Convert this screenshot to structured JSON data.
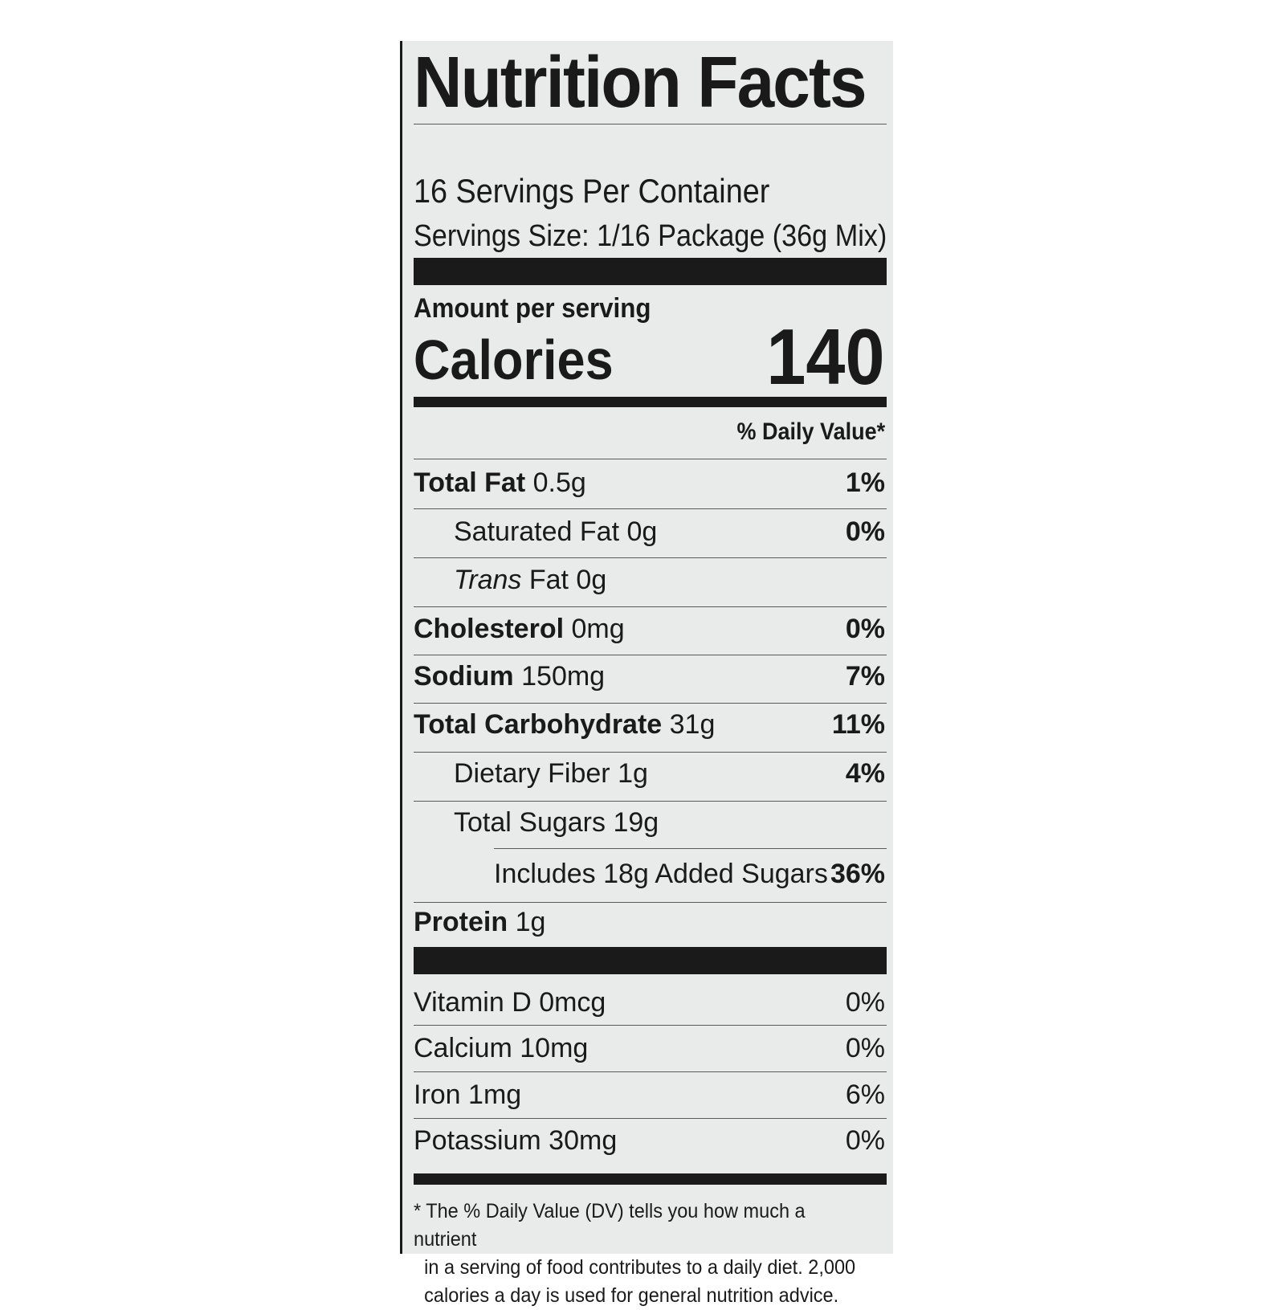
{
  "label": {
    "title": "Nutrition Facts",
    "servings_per_container": "16 Servings Per Container",
    "serving_size": "Servings Size: 1/16 Package (36g Mix)",
    "amount_per_serving": "Amount per serving",
    "calories_label": "Calories",
    "calories_value": "140",
    "daily_value_header": "% Daily Value*",
    "nutrients": [
      {
        "name": "Total Fat",
        "amount": "0.5g",
        "dv": "1%"
      },
      {
        "name": "Saturated Fat",
        "amount": "0g",
        "dv": "0%"
      },
      {
        "name": "Trans",
        "rest": "Fat 0g",
        "dv": ""
      },
      {
        "name": "Cholesterol",
        "amount": "0mg",
        "dv": "0%"
      },
      {
        "name": "Sodium",
        "amount": "150mg",
        "dv": "7%"
      },
      {
        "name": "Total Carbohydrate",
        "amount": "31g",
        "dv": "11%"
      },
      {
        "name": "Dietary Fiber",
        "amount": "1g",
        "dv": "4%"
      },
      {
        "name": "Total Sugars",
        "amount": "19g",
        "dv": ""
      },
      {
        "name": "Includes 18g Added Sugars",
        "dv": "36%"
      },
      {
        "name": "Protein",
        "amount": "1g",
        "dv": ""
      }
    ],
    "vitamins": [
      {
        "name": "Vitamin D 0mcg",
        "dv": "0%"
      },
      {
        "name": "Calcium 10mg",
        "dv": "0%"
      },
      {
        "name": "Iron 1mg",
        "dv": "6%"
      },
      {
        "name": "Potassium 30mg",
        "dv": "0%"
      }
    ],
    "footnote_1": "* The % Daily Value (DV) tells you how much a nutrient",
    "footnote_2": "in a serving of food contributes to a daily diet. 2,000",
    "footnote_3": "calories a day is used for general nutrition advice."
  }
}
